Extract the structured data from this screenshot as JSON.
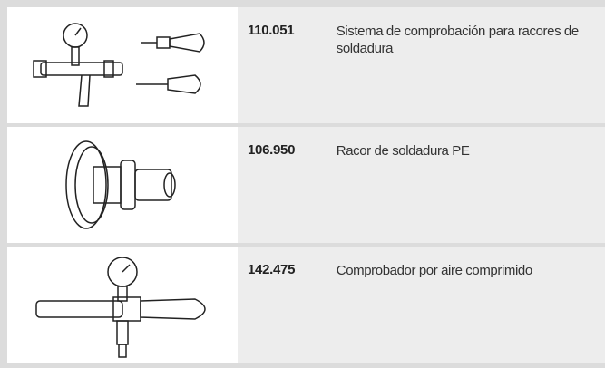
{
  "table": {
    "rows": [
      {
        "code": "110.051",
        "description": "Sistema de comprobación para racores de soldadura"
      },
      {
        "code": "106.950",
        "description": "Racor de soldadura PE"
      },
      {
        "code": "142.475",
        "description": "Comprobador por aire comprimido"
      }
    ]
  }
}
